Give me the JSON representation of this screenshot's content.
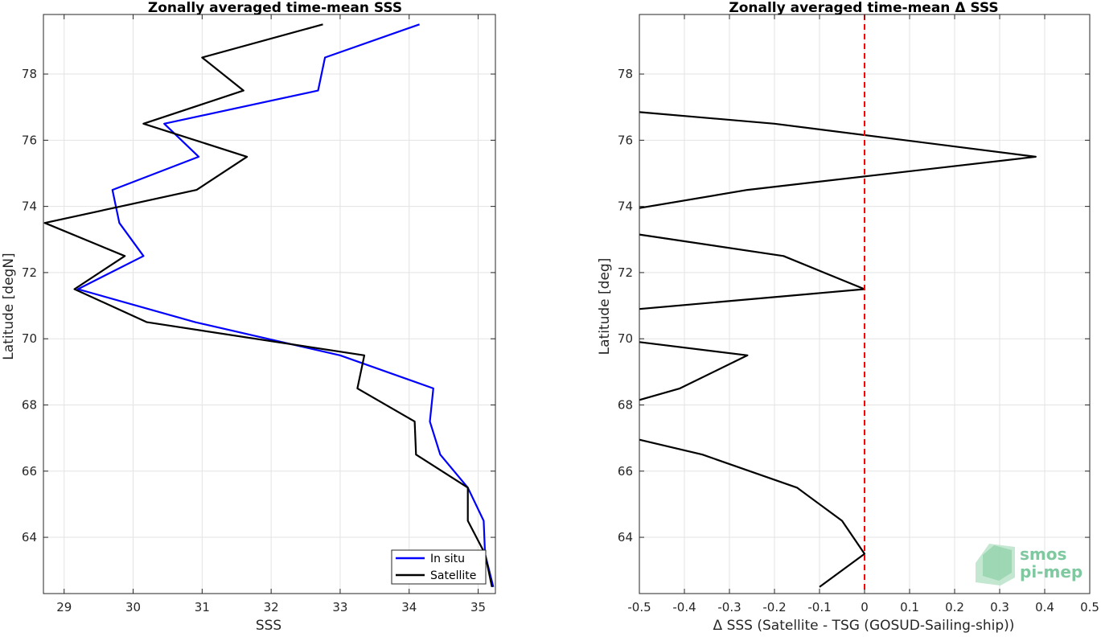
{
  "chart_data": [
    {
      "type": "line",
      "title": "Zonally averaged time-mean SSS",
      "xlabel": "SSS",
      "ylabel": "Latitude [degN]",
      "xlim": [
        28.7,
        35.25
      ],
      "ylim": [
        62.3,
        79.8
      ],
      "xticks": [
        29,
        30,
        31,
        32,
        33,
        34,
        35
      ],
      "yticks": [
        64,
        66,
        68,
        70,
        72,
        74,
        76,
        78
      ],
      "grid": true,
      "legend_position": "bottom-right",
      "series": [
        {
          "name": "In situ",
          "color": "#0000ff",
          "points": [
            [
              34.15,
              79.5
            ],
            [
              32.78,
              78.5
            ],
            [
              32.68,
              77.5
            ],
            [
              30.45,
              76.5
            ],
            [
              30.95,
              75.5
            ],
            [
              29.7,
              74.5
            ],
            [
              29.8,
              73.5
            ],
            [
              30.15,
              72.5
            ],
            [
              29.2,
              71.5
            ],
            [
              30.9,
              70.5
            ],
            [
              33.0,
              69.5
            ],
            [
              34.35,
              68.5
            ],
            [
              34.3,
              67.5
            ],
            [
              34.45,
              66.5
            ],
            [
              34.85,
              65.5
            ],
            [
              35.08,
              64.5
            ],
            [
              35.1,
              63.5
            ],
            [
              35.22,
              62.5
            ]
          ]
        },
        {
          "name": "Satellite",
          "color": "#000000",
          "points": [
            [
              32.75,
              79.5
            ],
            [
              31.0,
              78.5
            ],
            [
              31.6,
              77.5
            ],
            [
              30.15,
              76.5
            ],
            [
              31.65,
              75.5
            ],
            [
              30.92,
              74.5
            ],
            [
              28.72,
              73.5
            ],
            [
              29.88,
              72.5
            ],
            [
              29.15,
              71.5
            ],
            [
              30.2,
              70.5
            ],
            [
              33.35,
              69.5
            ],
            [
              33.25,
              68.5
            ],
            [
              34.08,
              67.5
            ],
            [
              34.1,
              66.5
            ],
            [
              34.85,
              65.5
            ],
            [
              34.85,
              64.5
            ],
            [
              35.1,
              63.5
            ],
            [
              35.2,
              62.5
            ]
          ]
        }
      ]
    },
    {
      "type": "line",
      "title": "Zonally averaged time-mean Δ SSS",
      "xlabel": "Δ SSS (Satellite - TSG (GOSUD-Sailing-ship))",
      "ylabel": "Latitude [deg]",
      "xlim": [
        -0.5,
        0.5
      ],
      "ylim": [
        62.3,
        79.8
      ],
      "xticks": [
        -0.5,
        -0.4,
        -0.3,
        -0.2,
        -0.1,
        0,
        0.1,
        0.2,
        0.3,
        0.4,
        0.5
      ],
      "xtick_labels": [
        "-0.5",
        "-0.4",
        "-0.3",
        "-0.2",
        "-0.1",
        "0",
        "0.1",
        "0.2",
        "0.3",
        "0.4",
        "0.5"
      ],
      "yticks": [
        64,
        66,
        68,
        70,
        72,
        74,
        76,
        78
      ],
      "grid": true,
      "reference_line": {
        "x": 0,
        "color": "#ff0000",
        "style": "dashed"
      },
      "series": [
        {
          "color": "#000000",
          "segments": [
            [
              [
                -0.5,
                76.85
              ],
              [
                -0.2,
                76.5
              ],
              [
                0.38,
                75.5
              ],
              [
                -0.26,
                74.5
              ],
              [
                -0.5,
                73.95
              ]
            ],
            [
              [
                -0.5,
                73.15
              ],
              [
                -0.18,
                72.5
              ],
              [
                0.0,
                71.5
              ],
              [
                -0.5,
                70.9
              ]
            ],
            [
              [
                -0.5,
                69.9
              ],
              [
                -0.26,
                69.5
              ],
              [
                -0.41,
                68.5
              ],
              [
                -0.5,
                68.15
              ]
            ],
            [
              [
                -0.5,
                66.95
              ],
              [
                -0.36,
                66.5
              ],
              [
                -0.15,
                65.5
              ],
              [
                -0.05,
                64.5
              ],
              [
                0.0,
                63.5
              ],
              [
                -0.1,
                62.5
              ]
            ]
          ]
        }
      ]
    }
  ],
  "logo": {
    "line1": "smos",
    "line2": "pi-mep"
  }
}
